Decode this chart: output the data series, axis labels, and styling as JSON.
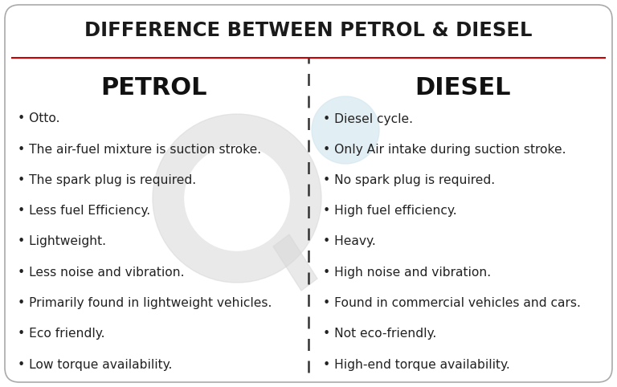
{
  "title": "DIFFERENCE BETWEEN PETROL & DIESEL",
  "col1_header": "PETROL",
  "col2_header": "DIESEL",
  "col1_items": [
    "Otto.",
    "The air-fuel mixture is suction stroke.",
    "The spark plug is required.",
    "Less fuel Efficiency.",
    "Lightweight.",
    "Less noise and vibration.",
    "Primarily found in lightweight vehicles.",
    "Eco friendly.",
    "Low torque availability."
  ],
  "col2_items": [
    "Diesel cycle.",
    "Only Air intake during suction stroke.",
    "No spark plug is required.",
    "High fuel efficiency.",
    "Heavy.",
    "High noise and vibration.",
    "Found in commercial vehicles and cars.",
    "Not eco-friendly.",
    "High-end torque availability."
  ],
  "bg_color": "#ffffff",
  "border_color": "#aaaaaa",
  "title_color": "#1a1a1a",
  "header_color": "#111111",
  "text_color": "#222222",
  "divider_line_color": "#cc0000",
  "dashed_line_color": "#333333",
  "title_fontsize": 17.5,
  "header_fontsize": 22,
  "item_fontsize": 11.2,
  "watermark_gray": "#d8d8d8",
  "watermark_blue": "#d5e8f0"
}
